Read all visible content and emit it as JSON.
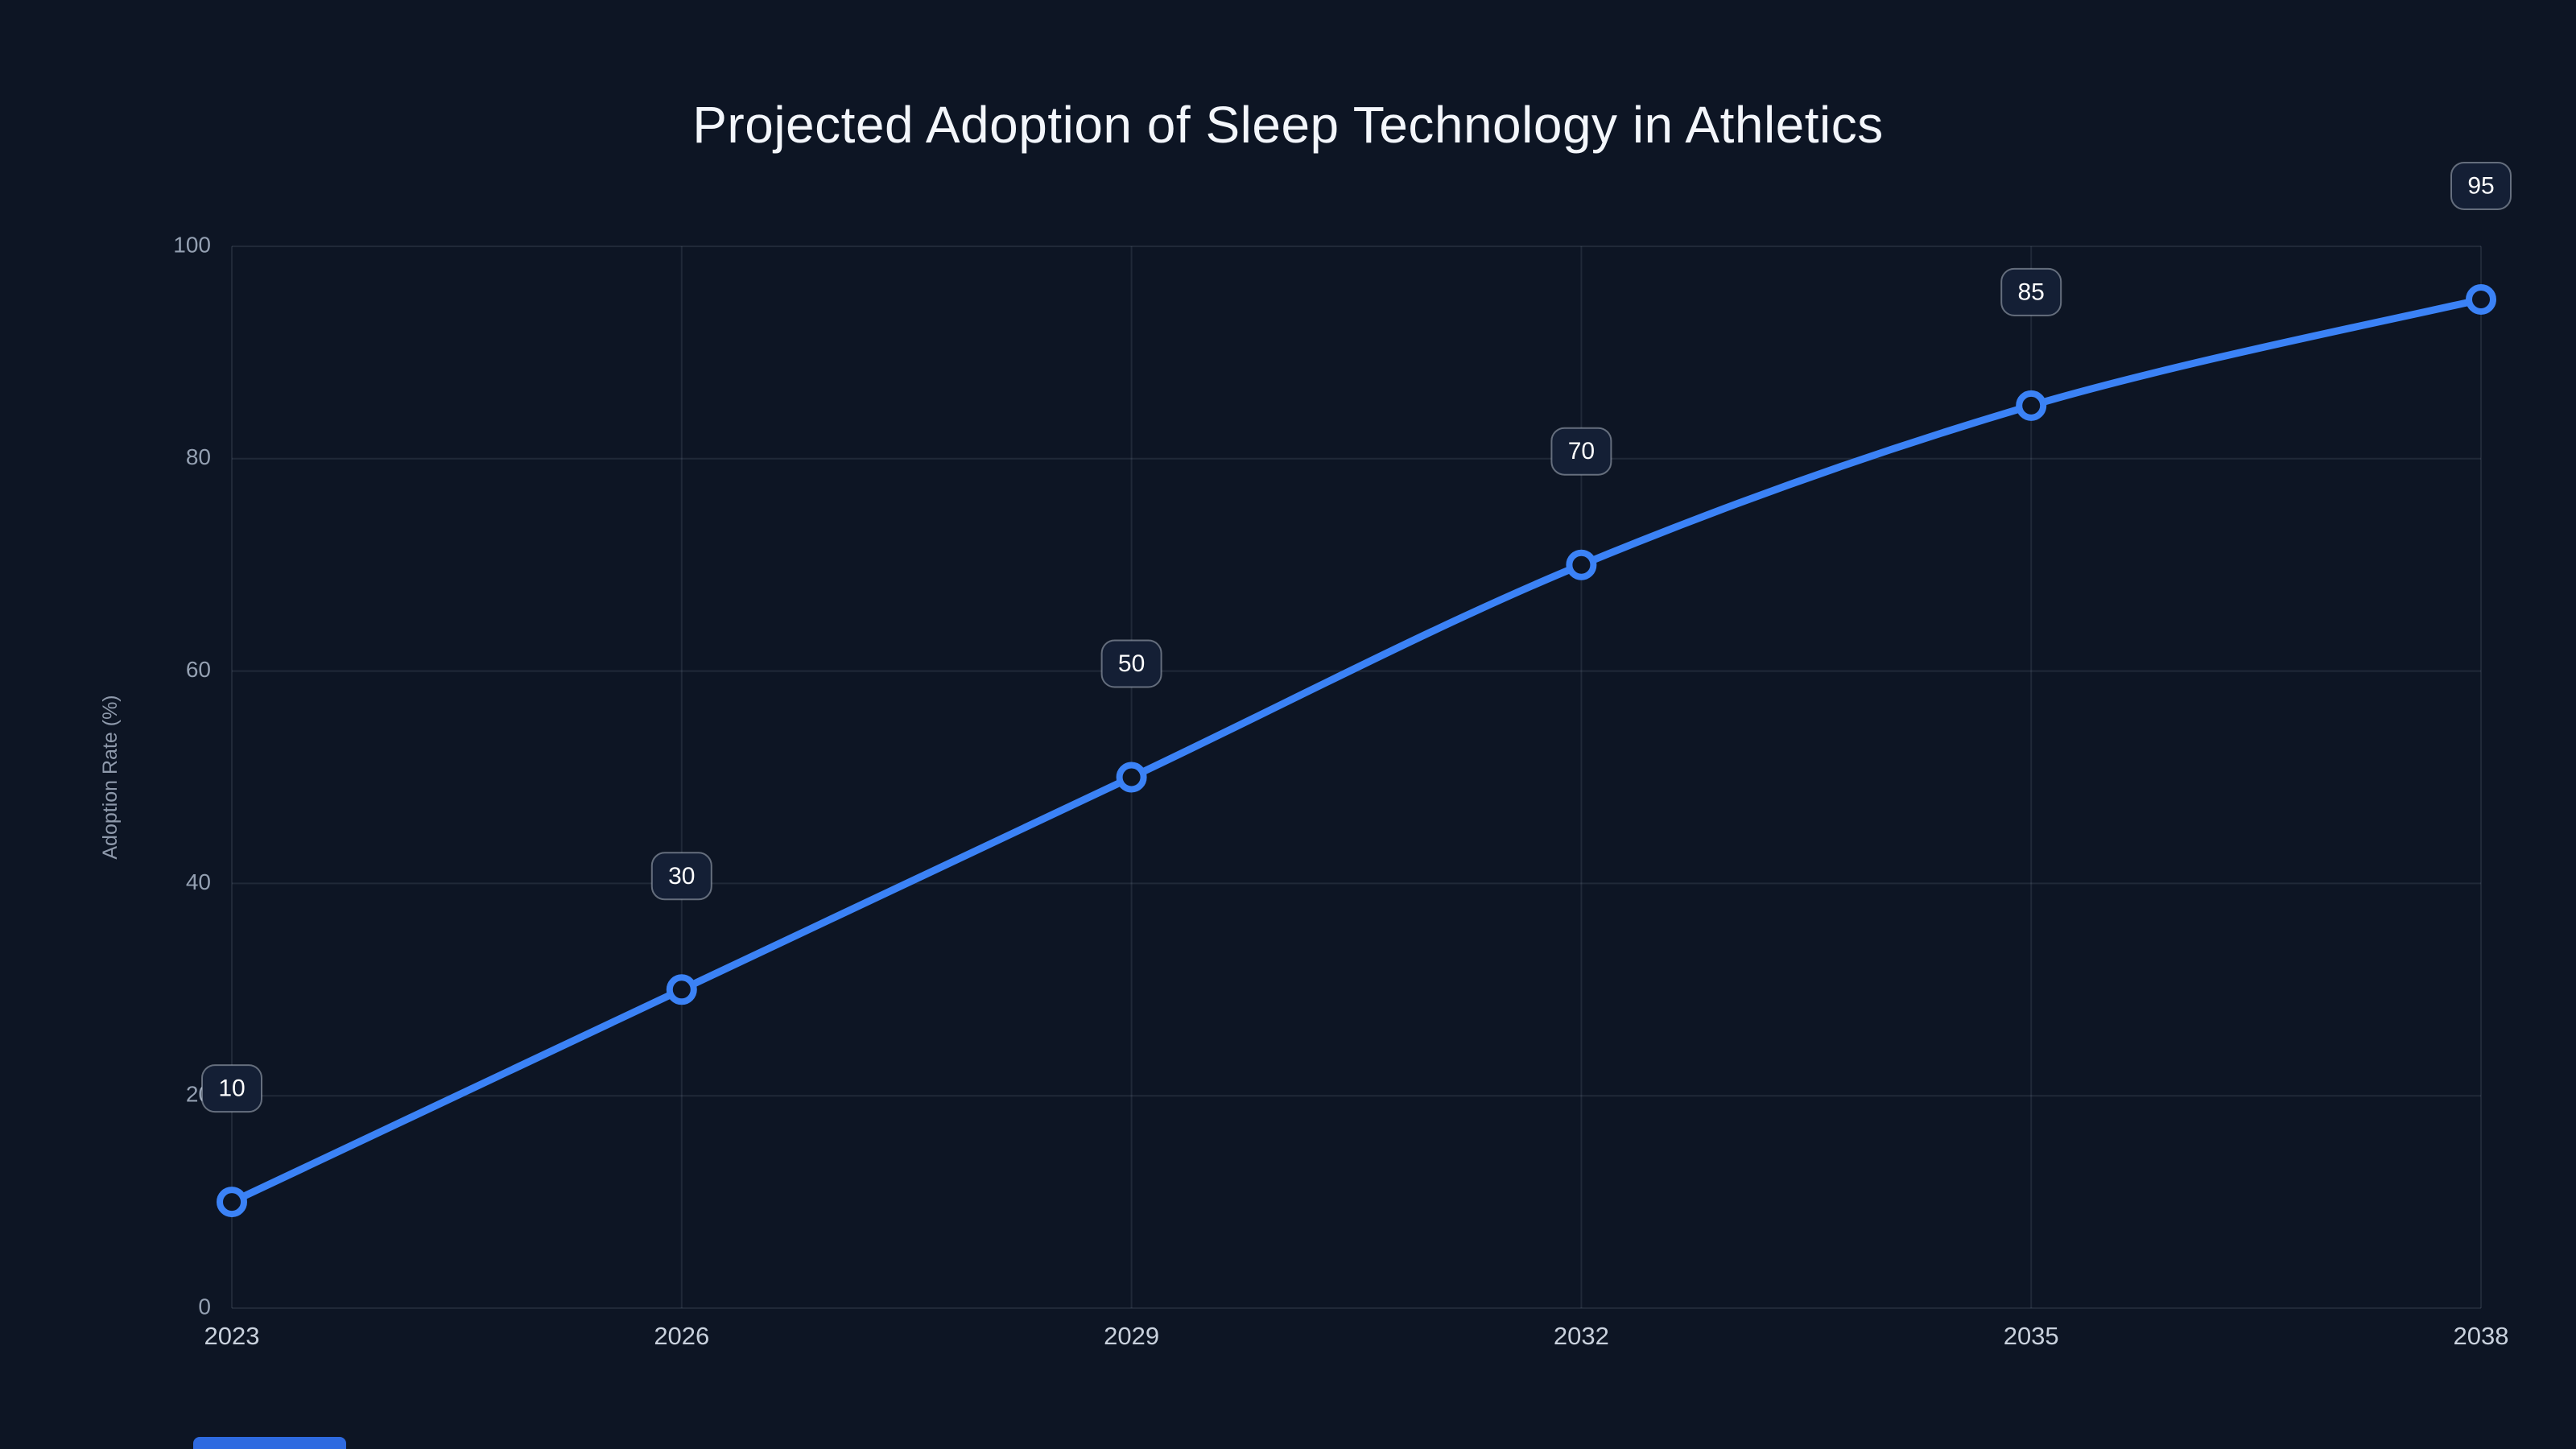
{
  "page": {
    "title": "Projected Adoption of Sleep Technology in Athletics"
  },
  "chart_data": {
    "type": "line",
    "title": "Projected Adoption of Sleep Technology in Athletics",
    "xlabel": "",
    "ylabel": "Adoption Rate (%)",
    "x": [
      2023,
      2026,
      2029,
      2032,
      2035,
      2038
    ],
    "values": [
      10,
      30,
      50,
      70,
      85,
      95
    ],
    "point_labels": [
      "10",
      "30",
      "50",
      "70",
      "85",
      "95"
    ],
    "x_ticks": [
      "2023",
      "2026",
      "2029",
      "2032",
      "2035",
      "2038"
    ],
    "y_ticks": [
      0,
      20,
      40,
      60,
      80,
      100
    ],
    "xlim": [
      2023,
      2038
    ],
    "ylim": [
      0,
      100
    ],
    "grid": true,
    "legend": "none",
    "colors": {
      "background": "#0d1524",
      "line": "#3b82f6",
      "point_fill": "#0d1524",
      "point_stroke": "#3b82f6",
      "grid": "rgba(148,163,184,0.14)",
      "y_axis_text": "#94a0b2",
      "x_axis_text": "#c9d1dd",
      "axis_label_text": "#8e99ab",
      "title_text": "#f3f6fb",
      "label_box_fill": "#141f35",
      "label_box_border": "rgba(203,213,225,0.45)",
      "label_text": "#ffffff",
      "accent_bar": "#2e6ae0"
    }
  }
}
